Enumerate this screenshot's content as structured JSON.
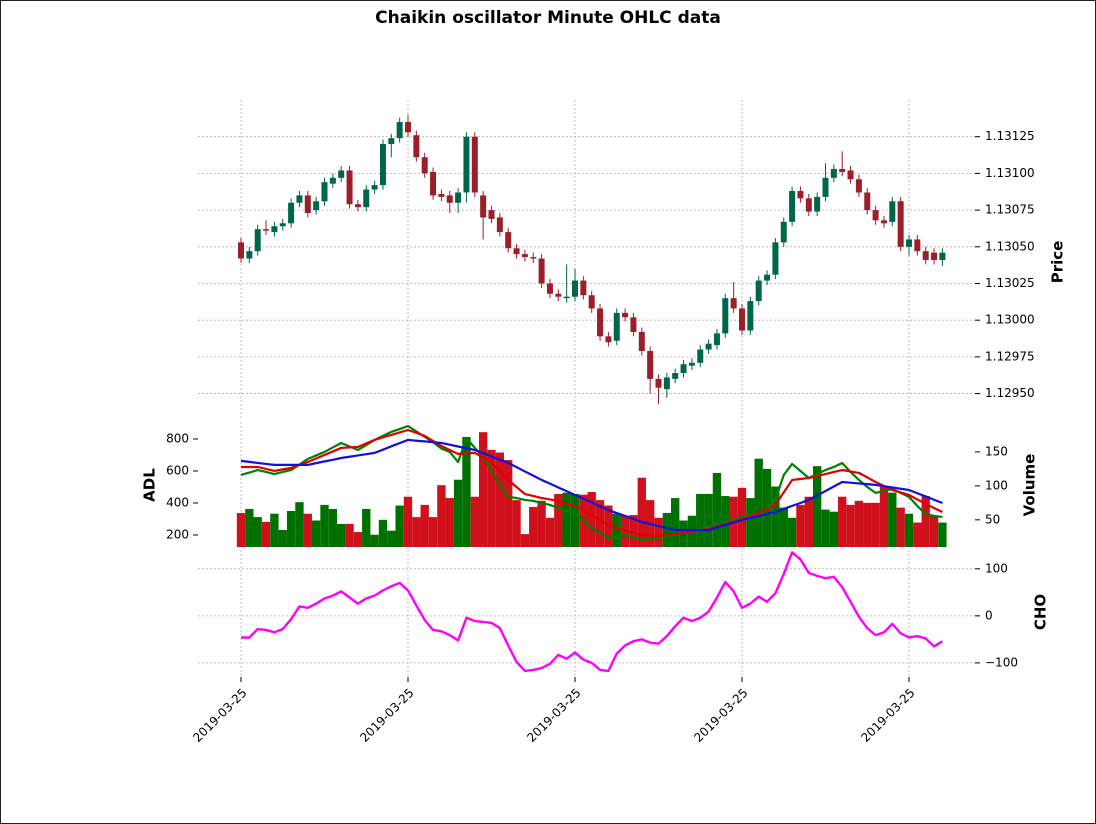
{
  "chart_data": [
    {
      "type": "candlestick",
      "title": "Chaikin oscillator Minute OHLC data",
      "ylabel": "Price",
      "up_color": "#00664a",
      "down_color": "#9b1f2a",
      "grid": true,
      "ylim": [
        1.12932,
        1.1315
      ],
      "yticks": [
        {
          "value": 1.1295,
          "label": "1.12950"
        },
        {
          "value": 1.12975,
          "label": "1.12975"
        },
        {
          "value": 1.13,
          "label": "1.13000"
        },
        {
          "value": 1.13025,
          "label": "1.13025"
        },
        {
          "value": 1.1305,
          "label": "1.13050"
        },
        {
          "value": 1.13075,
          "label": "1.13075"
        },
        {
          "value": 1.131,
          "label": "1.13100"
        },
        {
          "value": 1.13125,
          "label": "1.13125"
        }
      ],
      "open": [
        1.13053,
        1.13042,
        1.13047,
        1.13062,
        1.1306,
        1.13064,
        1.13066,
        1.1308,
        1.13085,
        1.13075,
        1.13081,
        1.13093,
        1.13097,
        1.13102,
        1.13079,
        1.13077,
        1.13089,
        1.13092,
        1.1312,
        1.13124,
        1.13135,
        1.13126,
        1.13111,
        1.13101,
        1.13086,
        1.13085,
        1.1308,
        1.13087,
        1.13125,
        1.13085,
        1.13075,
        1.1307,
        1.1306,
        1.13049,
        1.13045,
        1.13043,
        1.13042,
        1.13025,
        1.13018,
        1.13015,
        1.13016,
        1.13027,
        1.13017,
        1.13008,
        1.12989,
        1.12986,
        1.13005,
        1.13002,
        1.12992,
        1.12979,
        1.1296,
        1.12953,
        1.1296,
        1.12964,
        1.12969,
        1.12971,
        1.1298,
        1.12983,
        1.12991,
        1.13015,
        1.13008,
        1.12993,
        1.13013,
        1.13027,
        1.13031,
        1.13053,
        1.13067,
        1.13088,
        1.13083,
        1.13074,
        1.13084,
        1.13097,
        1.13103,
        1.13102,
        1.13096,
        1.13087,
        1.13075,
        1.13068,
        1.13067,
        1.13081,
        1.1305,
        1.13055,
        1.13047,
        1.13046,
        1.13041
      ],
      "high": [
        1.13056,
        1.1305,
        1.13065,
        1.13068,
        1.13067,
        1.13069,
        1.13083,
        1.13088,
        1.13088,
        1.13084,
        1.13097,
        1.131,
        1.13105,
        1.13105,
        1.13082,
        1.13092,
        1.13095,
        1.13123,
        1.13127,
        1.13138,
        1.1314,
        1.13129,
        1.13114,
        1.13104,
        1.13089,
        1.13088,
        1.1309,
        1.13128,
        1.13128,
        1.13088,
        1.13078,
        1.13073,
        1.13063,
        1.13052,
        1.13048,
        1.13046,
        1.13045,
        1.13028,
        1.13021,
        1.13038,
        1.13035,
        1.1303,
        1.1302,
        1.13011,
        1.12992,
        1.13008,
        1.13008,
        1.13005,
        1.12995,
        1.12982,
        1.12963,
        1.12964,
        1.12967,
        1.12973,
        1.12974,
        1.12983,
        1.12987,
        1.12994,
        1.13018,
        1.13026,
        1.13011,
        1.13016,
        1.1303,
        1.13034,
        1.13056,
        1.1307,
        1.13091,
        1.13091,
        1.13086,
        1.13087,
        1.13107,
        1.13106,
        1.13115,
        1.13105,
        1.13099,
        1.1309,
        1.13078,
        1.13071,
        1.13084,
        1.13084,
        1.13058,
        1.13058,
        1.1305,
        1.13049,
        1.13049
      ],
      "low": [
        1.13039,
        1.13039,
        1.13044,
        1.13058,
        1.13057,
        1.13061,
        1.13063,
        1.13077,
        1.1307,
        1.13072,
        1.13078,
        1.1309,
        1.13094,
        1.13076,
        1.13074,
        1.13074,
        1.13086,
        1.13089,
        1.13111,
        1.13121,
        1.13125,
        1.13108,
        1.13097,
        1.13082,
        1.13081,
        1.13073,
        1.13073,
        1.1308,
        1.13084,
        1.13055,
        1.13066,
        1.13057,
        1.13046,
        1.13042,
        1.1304,
        1.13039,
        1.13022,
        1.13015,
        1.13013,
        1.13012,
        1.13013,
        1.13014,
        1.13005,
        1.12986,
        1.12982,
        1.12983,
        1.12999,
        1.12989,
        1.12976,
        1.1295,
        1.12943,
        1.12947,
        1.12957,
        1.12961,
        1.12966,
        1.12968,
        1.12977,
        1.1298,
        1.12988,
        1.13005,
        1.1299,
        1.1299,
        1.1301,
        1.13024,
        1.13028,
        1.1305,
        1.13064,
        1.1308,
        1.13071,
        1.13071,
        1.13081,
        1.13094,
        1.13098,
        1.13093,
        1.13084,
        1.13072,
        1.13065,
        1.13063,
        1.13064,
        1.13047,
        1.13044,
        1.13044,
        1.13038,
        1.13038,
        1.13037
      ],
      "close": [
        1.13042,
        1.13047,
        1.13062,
        1.13061,
        1.13064,
        1.13066,
        1.1308,
        1.13085,
        1.13073,
        1.13081,
        1.13094,
        1.13097,
        1.13102,
        1.13079,
        1.13077,
        1.13089,
        1.13092,
        1.1312,
        1.13124,
        1.13135,
        1.13128,
        1.13111,
        1.131,
        1.13085,
        1.13084,
        1.1308,
        1.13087,
        1.13125,
        1.13087,
        1.1307,
        1.13069,
        1.1306,
        1.13049,
        1.13045,
        1.13043,
        1.13042,
        1.13025,
        1.13018,
        1.13016,
        1.13016,
        1.13027,
        1.13017,
        1.13008,
        1.12989,
        1.12985,
        1.13005,
        1.13002,
        1.12992,
        1.12979,
        1.1296,
        1.12954,
        1.12961,
        1.12964,
        1.1297,
        1.12971,
        1.1298,
        1.12984,
        1.12991,
        1.13015,
        1.13008,
        1.12993,
        1.13013,
        1.13027,
        1.13031,
        1.13053,
        1.13067,
        1.13088,
        1.13083,
        1.13074,
        1.13084,
        1.13097,
        1.13103,
        1.13101,
        1.13096,
        1.13087,
        1.13075,
        1.13068,
        1.13066,
        1.13081,
        1.1305,
        1.13055,
        1.13047,
        1.13041,
        1.13041,
        1.13046
      ]
    },
    {
      "type": "combo",
      "ylabel": "ADL",
      "y2label": "Volume",
      "grid": true,
      "ylim": [
        125,
        906
      ],
      "yticks": [
        200,
        400,
        600,
        800
      ],
      "y2lim": [
        10,
        194
      ],
      "y2ticks": [
        50,
        100,
        150
      ],
      "series": [
        {
          "type": "bar",
          "axis": "y2",
          "up_color": "#007000",
          "down_color": "#d0101a",
          "values": [
            60,
            66,
            54,
            47,
            59,
            35,
            63,
            76,
            59,
            49,
            72,
            66,
            44,
            44,
            32,
            66,
            28,
            50,
            34,
            71,
            84,
            54,
            72,
            54,
            101,
            82,
            109,
            172,
            84,
            179,
            153,
            149,
            138,
            79,
            29,
            69,
            78,
            53,
            88,
            90,
            88,
            87,
            91,
            79,
            71,
            59,
            56,
            57,
            112,
            79,
            53,
            60,
            82,
            49,
            56,
            88,
            88,
            119,
            85,
            84,
            97,
            82,
            140,
            125,
            99,
            68,
            53,
            72,
            84,
            129,
            65,
            62,
            84,
            72,
            78,
            75,
            75,
            100,
            90,
            68,
            59,
            46,
            85,
            56,
            46
          ]
        },
        {
          "type": "line",
          "color": "#008000",
          "values": [
            575,
            590,
            606,
            594,
            581,
            594,
            606,
            640,
            675,
            697,
            719,
            747,
            775,
            753,
            731,
            762,
            794,
            819,
            844,
            862,
            881,
            847,
            813,
            780,
            740,
            719,
            656,
            806,
            744,
            688,
            606,
            513,
            438,
            431,
            419,
            413,
            400,
            388,
            369,
            350,
            331,
            294,
            244,
            213,
            181,
            194,
            200,
            188,
            169,
            175,
            181,
            194,
            206,
            219,
            225,
            238,
            250,
            269,
            281,
            300,
            313,
            325,
            331,
            369,
            419,
            575,
            644,
            600,
            556,
            581,
            606,
            625,
            650,
            594,
            544,
            500,
            463,
            475,
            488,
            463,
            438,
            381,
            331,
            319,
            313
          ]
        },
        {
          "type": "line",
          "color": "#e00000",
          "values": [
            625,
            625,
            625,
            613,
            600,
            610,
            619,
            638,
            656,
            678,
            700,
            722,
            744,
            747,
            750,
            772,
            794,
            810,
            825,
            841,
            856,
            838,
            819,
            788,
            756,
            731,
            706,
            710,
            713,
            685,
            656,
            600,
            544,
            500,
            456,
            444,
            431,
            422,
            413,
            397,
            381,
            353,
            325,
            294,
            263,
            244,
            225,
            213,
            200,
            197,
            194,
            200,
            206,
            213,
            219,
            229,
            238,
            254,
            269,
            285,
            300,
            319,
            338,
            363,
            388,
            466,
            544,
            550,
            556,
            569,
            581,
            594,
            606,
            597,
            588,
            560,
            531,
            506,
            481,
            466,
            450,
            422,
            394,
            369,
            344
          ]
        },
        {
          "type": "line",
          "color": "#1010e0",
          "values": [
            663,
            657,
            650,
            644,
            638,
            638,
            638,
            638,
            638,
            649,
            660,
            670,
            681,
            689,
            697,
            705,
            713,
            733,
            754,
            774,
            794,
            789,
            785,
            780,
            775,
            764,
            753,
            742,
            731,
            711,
            691,
            670,
            650,
            624,
            597,
            571,
            544,
            521,
            497,
            474,
            450,
            427,
            403,
            380,
            356,
            337,
            319,
            300,
            281,
            269,
            256,
            244,
            231,
            231,
            231,
            231,
            231,
            247,
            263,
            278,
            294,
            307,
            319,
            332,
            344,
            363,
            382,
            400,
            419,
            447,
            475,
            503,
            531,
            527,
            522,
            518,
            513,
            505,
            497,
            489,
            481,
            461,
            441,
            420,
            400
          ]
        }
      ]
    },
    {
      "type": "line",
      "ylabel": "CHO",
      "grid": true,
      "color": "#ff00ff",
      "ylim": [
        -130,
        140
      ],
      "yticks": [
        {
          "value": -100,
          "label": "−100"
        },
        0,
        100
      ],
      "xticks": [
        {
          "value": 0,
          "label": "2019-03-25"
        },
        {
          "value": 20,
          "label": "2019-03-25"
        },
        {
          "value": 40,
          "label": "2019-03-25"
        },
        {
          "value": 60,
          "label": "2019-03-25"
        },
        {
          "value": 80,
          "label": "2019-03-25"
        }
      ],
      "values": [
        -46,
        -46,
        -28,
        -30,
        -35,
        -28,
        -7,
        20,
        17,
        26,
        37,
        43,
        52,
        39,
        26,
        37,
        43,
        54,
        63,
        70,
        54,
        22,
        -9,
        -30,
        -33,
        -41,
        -52,
        -4,
        -11,
        -13,
        -15,
        -26,
        -63,
        -98,
        -117,
        -115,
        -111,
        -102,
        -83,
        -91,
        -78,
        -93,
        -100,
        -115,
        -117,
        -80,
        -63,
        -54,
        -50,
        -57,
        -59,
        -43,
        -22,
        -4,
        -11,
        -4,
        9,
        39,
        72,
        52,
        17,
        26,
        41,
        30,
        48,
        89,
        135,
        120,
        91,
        85,
        80,
        83,
        61,
        30,
        -2,
        -26,
        -41,
        -35,
        -17,
        -37,
        -46,
        -43,
        -48,
        -65,
        -54
      ]
    }
  ]
}
